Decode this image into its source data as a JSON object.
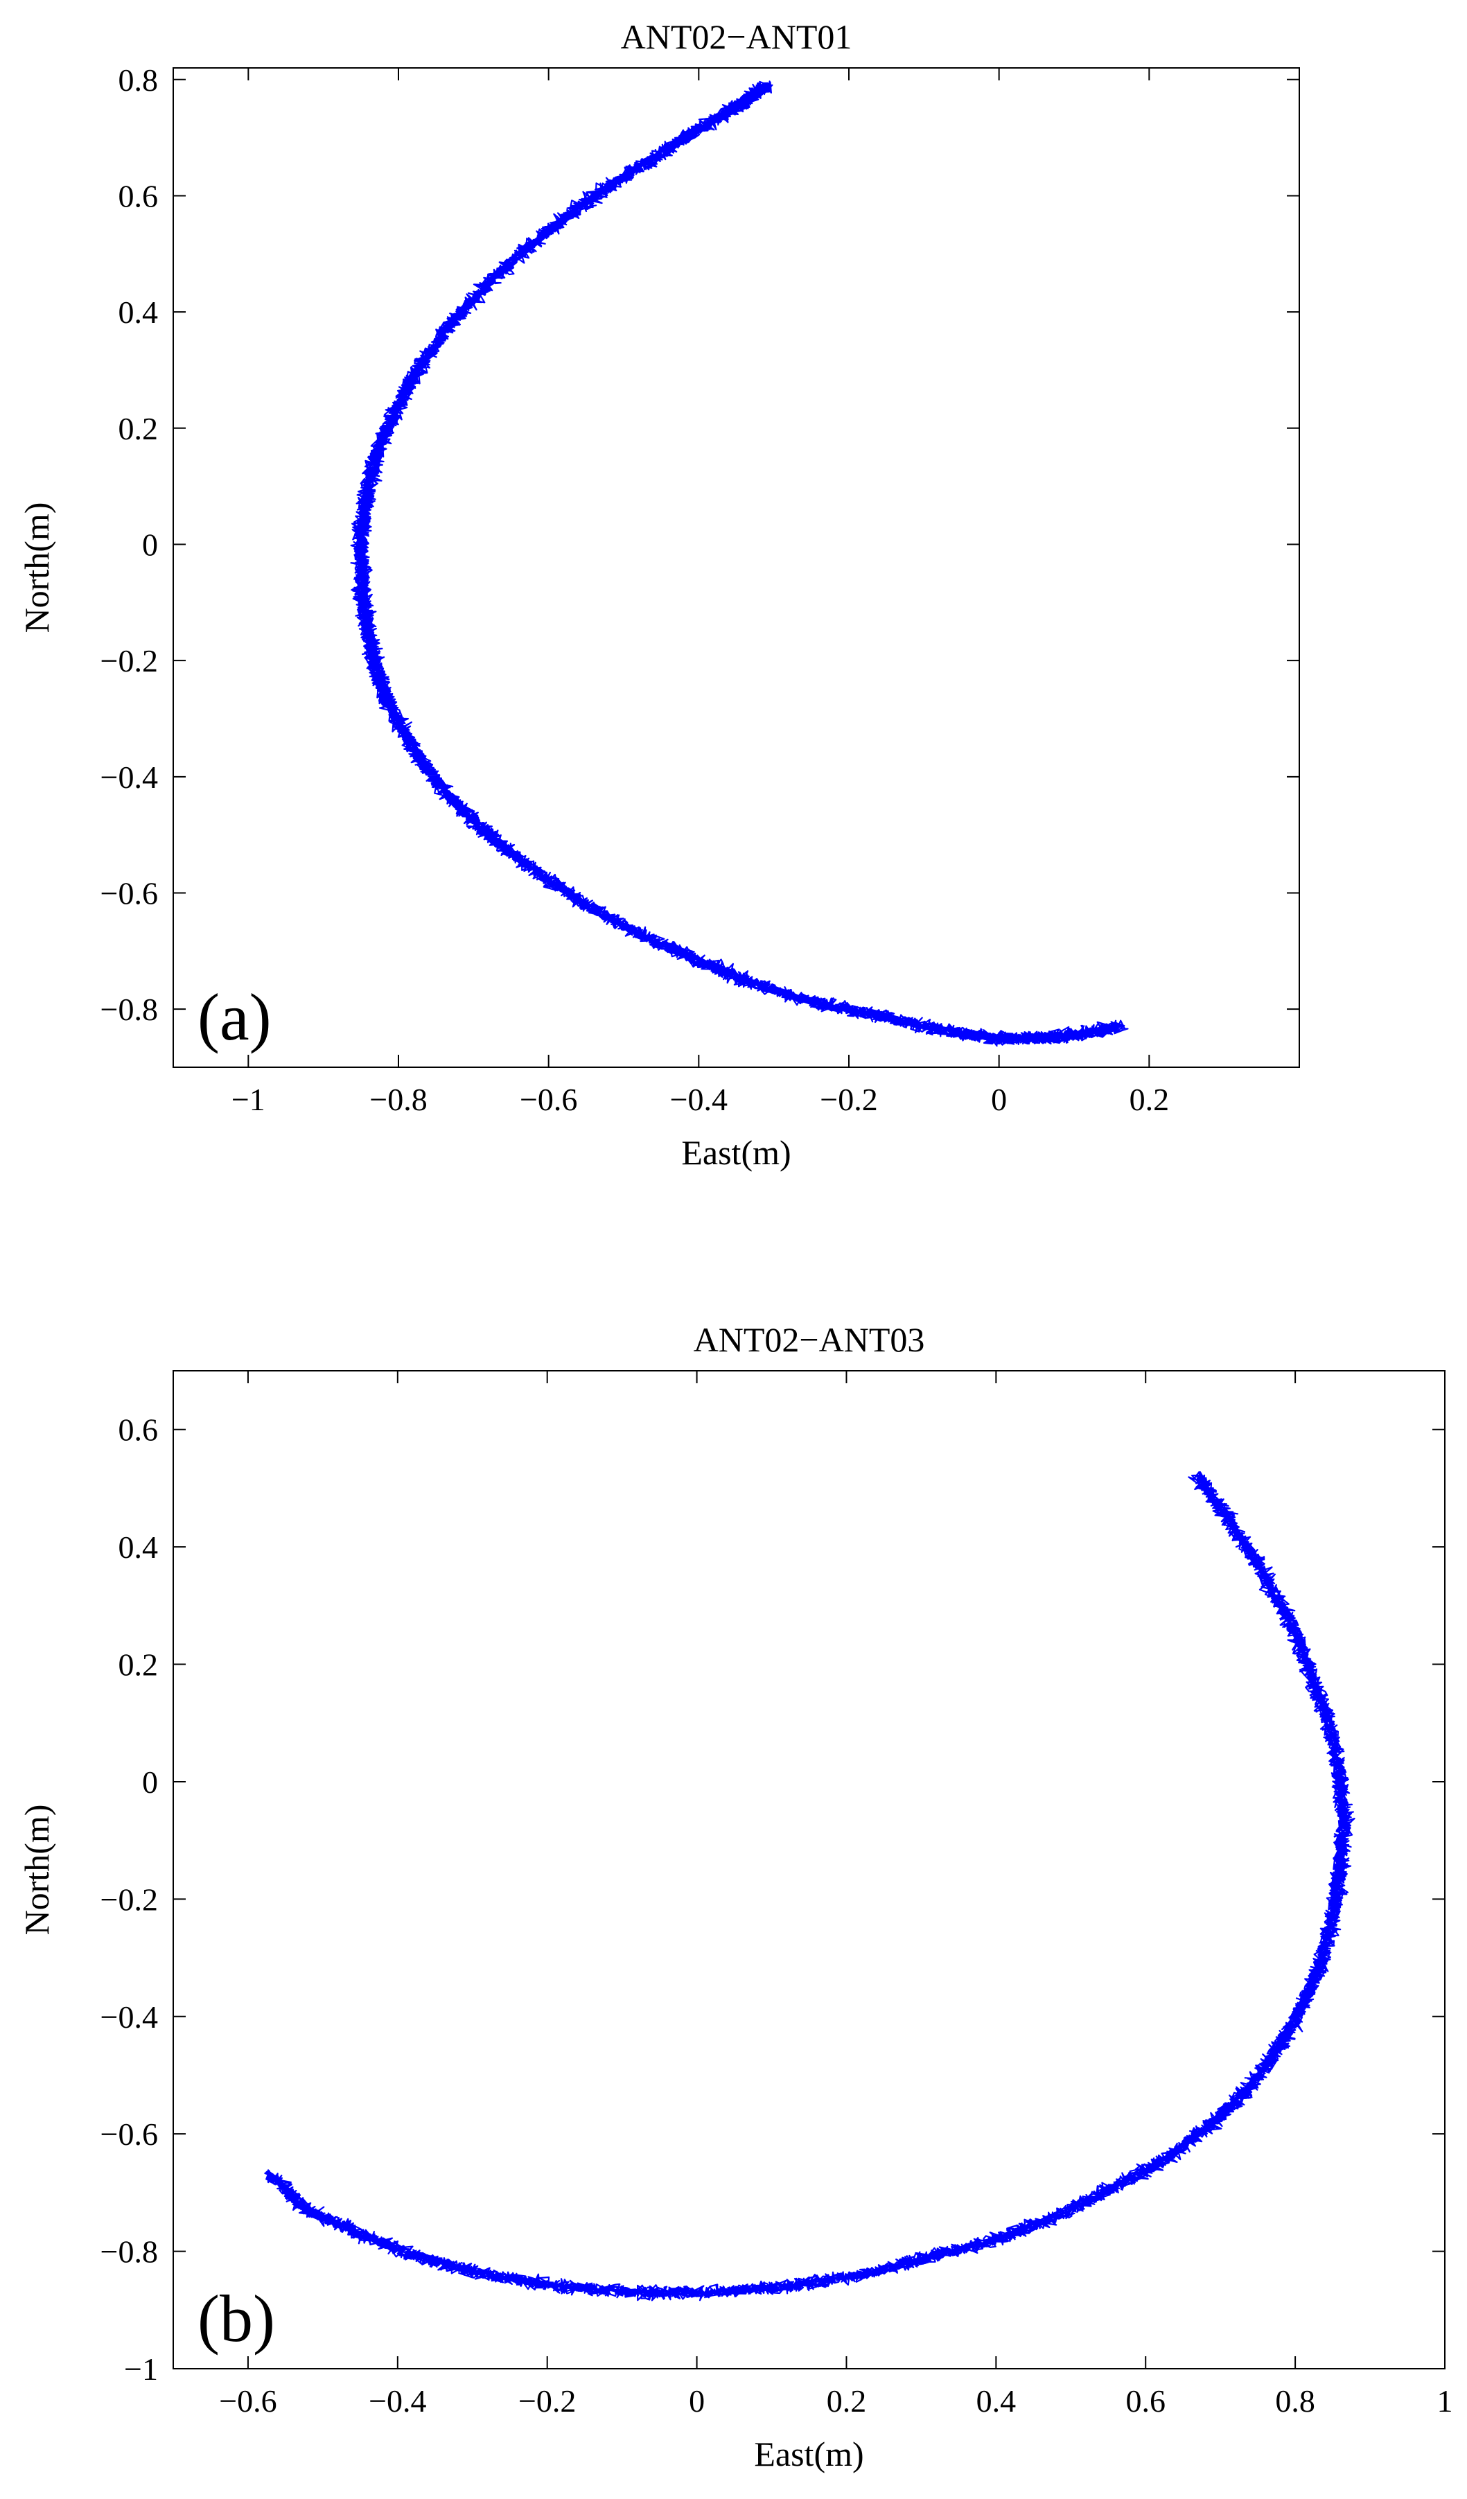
{
  "chart_data": [
    {
      "type": "line",
      "title": "ANT02−ANT01",
      "xlabel": "East(m)",
      "ylabel": "North(m)",
      "panel_label": "(a)",
      "xlim": [
        -1.1,
        0.4
      ],
      "ylim": [
        -0.9,
        0.82
      ],
      "xticks": [
        -1,
        -0.8,
        -0.6,
        -0.4,
        -0.2,
        0,
        0.2
      ],
      "xtick_labels": [
        "−1",
        "−0.8",
        "−0.6",
        "−0.4",
        "−0.2",
        "0",
        "0.2"
      ],
      "yticks": [
        -0.8,
        -0.6,
        -0.4,
        -0.2,
        0,
        0.2,
        0.4,
        0.6,
        0.8
      ],
      "ytick_labels": [
        "−0.8",
        "−0.6",
        "−0.4",
        "−0.2",
        "0",
        "0.2",
        "0.4",
        "0.6",
        "0.8"
      ],
      "grid": false,
      "line_color": "#0000ff",
      "series": [
        {
          "x": [
            -0.31,
            -0.34,
            -0.38,
            -0.43,
            -0.49,
            -0.56,
            -0.62,
            -0.68,
            -0.73,
            -0.77,
            -0.8,
            -0.825,
            -0.84,
            -0.848,
            -0.85,
            -0.848,
            -0.84,
            -0.83,
            -0.815,
            -0.79,
            -0.76,
            -0.72,
            -0.67,
            -0.61,
            -0.55,
            -0.48,
            -0.41,
            -0.34,
            -0.27,
            -0.2,
            -0.13,
            -0.06,
            0.0,
            0.05,
            0.1,
            0.16
          ],
          "y": [
            0.79,
            0.76,
            0.73,
            0.69,
            0.64,
            0.58,
            0.52,
            0.45,
            0.38,
            0.31,
            0.24,
            0.17,
            0.1,
            0.03,
            -0.03,
            -0.09,
            -0.15,
            -0.21,
            -0.27,
            -0.33,
            -0.39,
            -0.45,
            -0.51,
            -0.57,
            -0.62,
            -0.67,
            -0.71,
            -0.75,
            -0.78,
            -0.8,
            -0.82,
            -0.84,
            -0.85,
            -0.85,
            -0.845,
            -0.83
          ]
        }
      ]
    },
    {
      "type": "line",
      "title": "ANT02−ANT03",
      "xlabel": "East(m)",
      "ylabel": "North(m)",
      "panel_label": "(b)",
      "xlim": [
        -0.7,
        1.0
      ],
      "ylim": [
        -1.0,
        0.7
      ],
      "xticks": [
        -0.6,
        -0.4,
        -0.2,
        0,
        0.2,
        0.4,
        0.6,
        0.8,
        1
      ],
      "xtick_labels": [
        "−0.6",
        "−0.4",
        "−0.2",
        "0",
        "0.2",
        "0.4",
        "0.6",
        "0.8",
        "1"
      ],
      "yticks": [
        -1,
        -0.8,
        -0.6,
        -0.4,
        -0.2,
        0,
        0.2,
        0.4,
        0.6
      ],
      "ytick_labels": [
        "−1",
        "−0.8",
        "−0.6",
        "−0.4",
        "−0.2",
        "0",
        "0.2",
        "0.4",
        "0.6"
      ],
      "grid": false,
      "line_color": "#0000ff",
      "series": [
        {
          "x": [
            0.67,
            0.71,
            0.75,
            0.79,
            0.82,
            0.845,
            0.86,
            0.865,
            0.86,
            0.85,
            0.835,
            0.81,
            0.78,
            0.74,
            0.69,
            0.63,
            0.56,
            0.48,
            0.4,
            0.31,
            0.22,
            0.12,
            0.02,
            -0.08,
            -0.18,
            -0.28,
            -0.37,
            -0.45,
            -0.52,
            -0.57
          ],
          "y": [
            0.52,
            0.45,
            0.37,
            0.28,
            0.19,
            0.1,
            0.01,
            -0.07,
            -0.15,
            -0.23,
            -0.31,
            -0.38,
            -0.45,
            -0.52,
            -0.58,
            -0.64,
            -0.69,
            -0.74,
            -0.78,
            -0.81,
            -0.84,
            -0.86,
            -0.87,
            -0.87,
            -0.86,
            -0.84,
            -0.81,
            -0.77,
            -0.73,
            -0.67
          ]
        }
      ]
    }
  ]
}
